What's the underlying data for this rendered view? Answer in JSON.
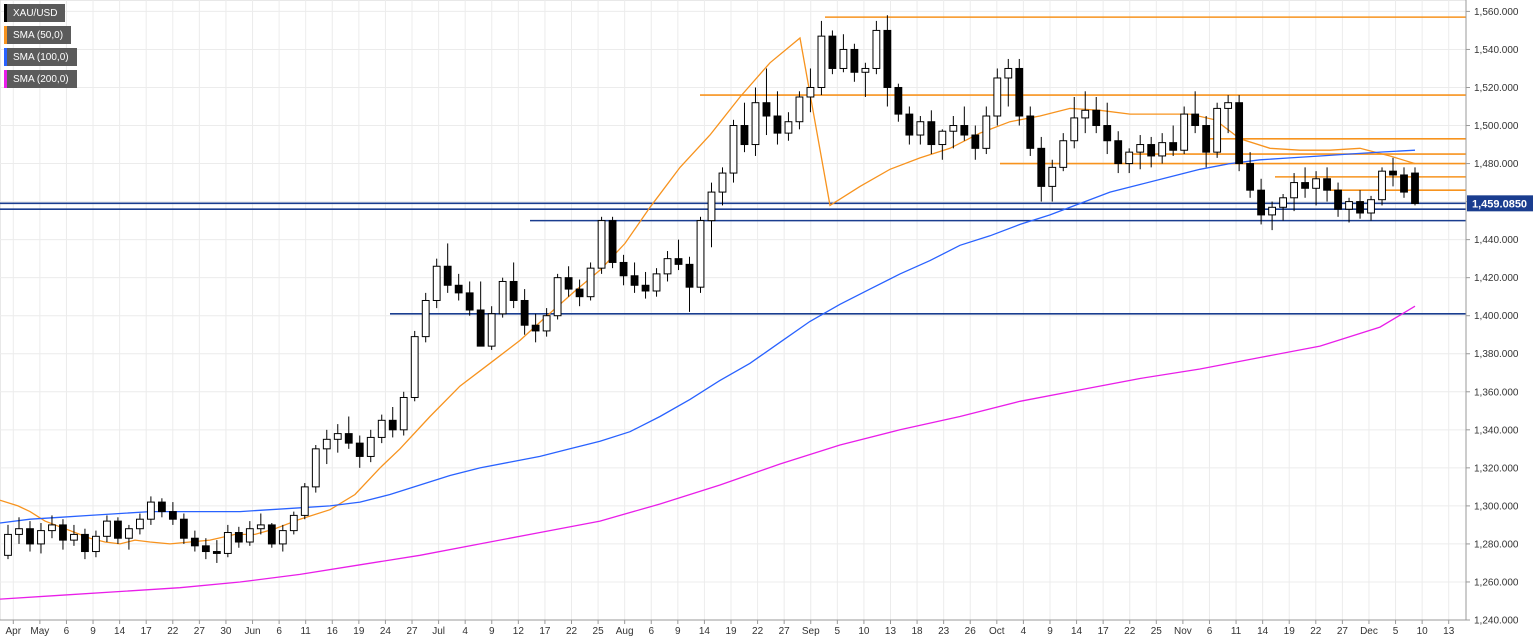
{
  "legend": [
    {
      "label": "XAU/USD",
      "color": "#000000"
    },
    {
      "label": "SMA (50,0)",
      "color": "#f7931e"
    },
    {
      "label": "SMA (100,0)",
      "color": "#2962ff"
    },
    {
      "label": "SMA (200,0)",
      "color": "#e91ee9"
    }
  ],
  "chart_data": {
    "type": "candlestick",
    "symbol": "XAU/USD",
    "last_price": "1,459.0850",
    "ylim": [
      1240,
      1566
    ],
    "y_ticks": [
      1240,
      1260,
      1280,
      1300,
      1320,
      1340,
      1360,
      1380,
      1400,
      1420,
      1440,
      1460,
      1480,
      1500,
      1520,
      1540,
      1560
    ],
    "x_labels": [
      "Apr",
      "May",
      "6",
      "9",
      "14",
      "17",
      "22",
      "27",
      "30",
      "Jun",
      "6",
      "11",
      "16",
      "19",
      "24",
      "27",
      "Jul",
      "4",
      "9",
      "12",
      "17",
      "22",
      "25",
      "Aug",
      "6",
      "9",
      "14",
      "19",
      "22",
      "27",
      "Sep",
      "5",
      "10",
      "13",
      "18",
      "23",
      "26",
      "Oct",
      "4",
      "9",
      "14",
      "17",
      "22",
      "25",
      "Nov",
      "6",
      "11",
      "14",
      "19",
      "22",
      "27",
      "Dec",
      "5",
      "10",
      "13"
    ],
    "grid": true,
    "horizontal_levels": [
      {
        "value": 1557,
        "color": "#f7931e"
      },
      {
        "value": 1516,
        "color": "#f7931e"
      },
      {
        "value": 1493,
        "color": "#f7931e"
      },
      {
        "value": 1485,
        "color": "#f7931e"
      },
      {
        "value": 1480,
        "color": "#f7931e"
      },
      {
        "value": 1473,
        "color": "#f7931e"
      },
      {
        "value": 1466,
        "color": "#f7931e"
      },
      {
        "value": 1459.085,
        "color": "#1a3d8f"
      },
      {
        "value": 1456,
        "color": "#1a3d8f"
      },
      {
        "value": 1450,
        "color": "#1a3d8f"
      },
      {
        "value": 1401,
        "color": "#1a3d8f"
      }
    ],
    "candles": [
      [
        1274,
        1290,
        1272,
        1285
      ],
      [
        1285,
        1294,
        1280,
        1288
      ],
      [
        1288,
        1292,
        1276,
        1280
      ],
      [
        1280,
        1291,
        1275,
        1287
      ],
      [
        1287,
        1295,
        1283,
        1290
      ],
      [
        1290,
        1293,
        1277,
        1282
      ],
      [
        1282,
        1290,
        1279,
        1285
      ],
      [
        1285,
        1288,
        1272,
        1276
      ],
      [
        1276,
        1287,
        1273,
        1284
      ],
      [
        1284,
        1295,
        1281,
        1292
      ],
      [
        1292,
        1294,
        1280,
        1283
      ],
      [
        1283,
        1290,
        1277,
        1288
      ],
      [
        1288,
        1296,
        1285,
        1293
      ],
      [
        1293,
        1305,
        1290,
        1302
      ],
      [
        1302,
        1304,
        1294,
        1297
      ],
      [
        1297,
        1302,
        1290,
        1293
      ],
      [
        1293,
        1296,
        1280,
        1283
      ],
      [
        1283,
        1287,
        1276,
        1279
      ],
      [
        1279,
        1283,
        1272,
        1276
      ],
      [
        1276,
        1282,
        1270,
        1275
      ],
      [
        1275,
        1290,
        1273,
        1286
      ],
      [
        1286,
        1289,
        1278,
        1281
      ],
      [
        1281,
        1292,
        1279,
        1288
      ],
      [
        1288,
        1296,
        1285,
        1290
      ],
      [
        1290,
        1291,
        1278,
        1280
      ],
      [
        1280,
        1290,
        1276,
        1287
      ],
      [
        1287,
        1297,
        1285,
        1295
      ],
      [
        1295,
        1312,
        1293,
        1310
      ],
      [
        1310,
        1332,
        1307,
        1330
      ],
      [
        1330,
        1340,
        1322,
        1335
      ],
      [
        1335,
        1343,
        1328,
        1338
      ],
      [
        1338,
        1347,
        1330,
        1333
      ],
      [
        1333,
        1337,
        1320,
        1326
      ],
      [
        1326,
        1340,
        1323,
        1336
      ],
      [
        1336,
        1348,
        1333,
        1345
      ],
      [
        1345,
        1352,
        1336,
        1340
      ],
      [
        1340,
        1360,
        1337,
        1357
      ],
      [
        1357,
        1392,
        1355,
        1389
      ],
      [
        1389,
        1412,
        1386,
        1408
      ],
      [
        1408,
        1430,
        1404,
        1426
      ],
      [
        1426,
        1438,
        1412,
        1416
      ],
      [
        1416,
        1422,
        1408,
        1412
      ],
      [
        1412,
        1418,
        1400,
        1403
      ],
      [
        1403,
        1418,
        1385,
        1384
      ],
      [
        1384,
        1405,
        1382,
        1401
      ],
      [
        1401,
        1420,
        1399,
        1418
      ],
      [
        1418,
        1428,
        1404,
        1408
      ],
      [
        1408,
        1414,
        1390,
        1395
      ],
      [
        1395,
        1401,
        1386,
        1392
      ],
      [
        1392,
        1404,
        1389,
        1400
      ],
      [
        1400,
        1422,
        1398,
        1420
      ],
      [
        1420,
        1426,
        1410,
        1414
      ],
      [
        1414,
        1419,
        1405,
        1410
      ],
      [
        1410,
        1428,
        1408,
        1425
      ],
      [
        1425,
        1452,
        1422,
        1450
      ],
      [
        1450,
        1452,
        1425,
        1428
      ],
      [
        1428,
        1432,
        1416,
        1421
      ],
      [
        1421,
        1428,
        1412,
        1416
      ],
      [
        1416,
        1423,
        1409,
        1413
      ],
      [
        1413,
        1425,
        1410,
        1422
      ],
      [
        1422,
        1434,
        1418,
        1430
      ],
      [
        1430,
        1440,
        1424,
        1427
      ],
      [
        1427,
        1431,
        1402,
        1415
      ],
      [
        1415,
        1452,
        1412,
        1450
      ],
      [
        1450,
        1470,
        1436,
        1465
      ],
      [
        1465,
        1478,
        1458,
        1475
      ],
      [
        1475,
        1503,
        1470,
        1500
      ],
      [
        1500,
        1512,
        1486,
        1490
      ],
      [
        1490,
        1520,
        1484,
        1512
      ],
      [
        1512,
        1530,
        1495,
        1505
      ],
      [
        1505,
        1518,
        1490,
        1496
      ],
      [
        1496,
        1507,
        1492,
        1502
      ],
      [
        1502,
        1518,
        1498,
        1515
      ],
      [
        1515,
        1530,
        1507,
        1520
      ],
      [
        1520,
        1555,
        1516,
        1547
      ],
      [
        1547,
        1550,
        1527,
        1530
      ],
      [
        1530,
        1548,
        1528,
        1540
      ],
      [
        1540,
        1543,
        1523,
        1528
      ],
      [
        1528,
        1533,
        1515,
        1530
      ],
      [
        1530,
        1555,
        1527,
        1550
      ],
      [
        1550,
        1558,
        1510,
        1520
      ],
      [
        1520,
        1522,
        1502,
        1506
      ],
      [
        1506,
        1510,
        1490,
        1495
      ],
      [
        1495,
        1505,
        1490,
        1502
      ],
      [
        1502,
        1508,
        1485,
        1490
      ],
      [
        1490,
        1498,
        1482,
        1497
      ],
      [
        1497,
        1505,
        1488,
        1500
      ],
      [
        1500,
        1510,
        1492,
        1495
      ],
      [
        1495,
        1500,
        1482,
        1488
      ],
      [
        1488,
        1510,
        1485,
        1505
      ],
      [
        1505,
        1530,
        1500,
        1525
      ],
      [
        1525,
        1535,
        1510,
        1530
      ],
      [
        1530,
        1535,
        1500,
        1505
      ],
      [
        1505,
        1510,
        1484,
        1488
      ],
      [
        1488,
        1494,
        1460,
        1468
      ],
      [
        1468,
        1482,
        1460,
        1478
      ],
      [
        1478,
        1496,
        1476,
        1492
      ],
      [
        1492,
        1515,
        1488,
        1504
      ],
      [
        1504,
        1518,
        1496,
        1508
      ],
      [
        1508,
        1515,
        1496,
        1500
      ],
      [
        1500,
        1512,
        1485,
        1492
      ],
      [
        1492,
        1497,
        1475,
        1480
      ],
      [
        1480,
        1488,
        1475,
        1486
      ],
      [
        1486,
        1495,
        1477,
        1490
      ],
      [
        1490,
        1494,
        1478,
        1484
      ],
      [
        1484,
        1496,
        1480,
        1491
      ],
      [
        1491,
        1500,
        1484,
        1487
      ],
      [
        1487,
        1510,
        1485,
        1506
      ],
      [
        1506,
        1518,
        1496,
        1500
      ],
      [
        1500,
        1505,
        1478,
        1486
      ],
      [
        1486,
        1512,
        1483,
        1509
      ],
      [
        1509,
        1516,
        1496,
        1512
      ],
      [
        1512,
        1516,
        1476,
        1480
      ],
      [
        1480,
        1486,
        1462,
        1466
      ],
      [
        1466,
        1472,
        1448,
        1453
      ],
      [
        1453,
        1460,
        1445,
        1457
      ],
      [
        1457,
        1464,
        1450,
        1462
      ],
      [
        1462,
        1475,
        1455,
        1470
      ],
      [
        1470,
        1478,
        1462,
        1467
      ],
      [
        1467,
        1476,
        1458,
        1472
      ],
      [
        1472,
        1478,
        1460,
        1466
      ],
      [
        1466,
        1470,
        1452,
        1456
      ],
      [
        1456,
        1462,
        1449,
        1460
      ],
      [
        1460,
        1466,
        1451,
        1454
      ],
      [
        1454,
        1463,
        1450,
        1461
      ],
      [
        1461,
        1478,
        1458,
        1476
      ],
      [
        1476,
        1483,
        1468,
        1474
      ],
      [
        1474,
        1478,
        1462,
        1465
      ],
      [
        1475,
        1478,
        1458,
        1459
      ]
    ],
    "series": [
      {
        "name": "SMA (50,0)",
        "color": "#f7931e",
        "values": [
          [
            0,
            1303
          ],
          [
            18,
            1300
          ],
          [
            30,
            1297
          ],
          [
            45,
            1292
          ],
          [
            60,
            1289
          ],
          [
            75,
            1286
          ],
          [
            90,
            1283
          ],
          [
            105,
            1281
          ],
          [
            120,
            1280
          ],
          [
            135,
            1282
          ],
          [
            150,
            1281
          ],
          [
            170,
            1280
          ],
          [
            190,
            1281
          ],
          [
            210,
            1282
          ],
          [
            235,
            1285
          ],
          [
            255,
            1285
          ],
          [
            275,
            1288
          ],
          [
            300,
            1293
          ],
          [
            330,
            1298
          ],
          [
            355,
            1306
          ],
          [
            380,
            1320
          ],
          [
            400,
            1330
          ],
          [
            430,
            1347
          ],
          [
            460,
            1363
          ],
          [
            490,
            1375
          ],
          [
            520,
            1387
          ],
          [
            545,
            1399
          ],
          [
            575,
            1413
          ],
          [
            600,
            1424
          ],
          [
            625,
            1438
          ],
          [
            650,
            1457
          ],
          [
            680,
            1478
          ],
          [
            710,
            1495
          ],
          [
            740,
            1515
          ],
          [
            770,
            1533
          ],
          [
            800,
            1546
          ],
          [
            830,
            1458
          ],
          [
            860,
            1468
          ],
          [
            890,
            1477
          ],
          [
            920,
            1483
          ],
          [
            950,
            1488
          ],
          [
            980,
            1496
          ],
          [
            1010,
            1502
          ],
          [
            1040,
            1505
          ],
          [
            1070,
            1509
          ],
          [
            1100,
            1508
          ],
          [
            1130,
            1506
          ],
          [
            1160,
            1506
          ],
          [
            1190,
            1506
          ],
          [
            1215,
            1503
          ],
          [
            1240,
            1493
          ],
          [
            1270,
            1488
          ],
          [
            1300,
            1487
          ],
          [
            1330,
            1487
          ],
          [
            1360,
            1488
          ],
          [
            1390,
            1484
          ],
          [
            1415,
            1480
          ]
        ]
      },
      {
        "name": "SMA (100,0)",
        "color": "#2962ff",
        "values": [
          [
            0,
            1291
          ],
          [
            30,
            1293
          ],
          [
            60,
            1294
          ],
          [
            90,
            1295
          ],
          [
            120,
            1296
          ],
          [
            150,
            1297
          ],
          [
            180,
            1297
          ],
          [
            210,
            1297
          ],
          [
            240,
            1297
          ],
          [
            270,
            1298
          ],
          [
            300,
            1299
          ],
          [
            330,
            1300
          ],
          [
            360,
            1302
          ],
          [
            390,
            1306
          ],
          [
            420,
            1311
          ],
          [
            450,
            1316
          ],
          [
            480,
            1320
          ],
          [
            510,
            1323
          ],
          [
            540,
            1326
          ],
          [
            570,
            1330
          ],
          [
            600,
            1334
          ],
          [
            630,
            1339
          ],
          [
            660,
            1347
          ],
          [
            690,
            1356
          ],
          [
            720,
            1366
          ],
          [
            750,
            1375
          ],
          [
            780,
            1386
          ],
          [
            810,
            1397
          ],
          [
            840,
            1406
          ],
          [
            870,
            1414
          ],
          [
            900,
            1422
          ],
          [
            930,
            1429
          ],
          [
            960,
            1437
          ],
          [
            990,
            1442
          ],
          [
            1020,
            1448
          ],
          [
            1050,
            1453
          ],
          [
            1080,
            1459
          ],
          [
            1110,
            1465
          ],
          [
            1140,
            1469
          ],
          [
            1170,
            1473
          ],
          [
            1200,
            1477
          ],
          [
            1230,
            1480
          ],
          [
            1260,
            1482
          ],
          [
            1290,
            1483
          ],
          [
            1320,
            1484
          ],
          [
            1350,
            1485
          ],
          [
            1380,
            1486
          ],
          [
            1415,
            1487
          ]
        ]
      },
      {
        "name": "SMA (200,0)",
        "color": "#e91ee9",
        "values": [
          [
            0,
            1251
          ],
          [
            60,
            1253
          ],
          [
            120,
            1255
          ],
          [
            180,
            1257
          ],
          [
            240,
            1260
          ],
          [
            300,
            1264
          ],
          [
            360,
            1269
          ],
          [
            420,
            1274
          ],
          [
            480,
            1280
          ],
          [
            540,
            1286
          ],
          [
            600,
            1292
          ],
          [
            660,
            1301
          ],
          [
            720,
            1311
          ],
          [
            780,
            1322
          ],
          [
            840,
            1332
          ],
          [
            900,
            1340
          ],
          [
            960,
            1347
          ],
          [
            1020,
            1355
          ],
          [
            1080,
            1361
          ],
          [
            1140,
            1367
          ],
          [
            1200,
            1372
          ],
          [
            1260,
            1378
          ],
          [
            1320,
            1384
          ],
          [
            1380,
            1394
          ],
          [
            1415,
            1405
          ]
        ]
      }
    ]
  }
}
